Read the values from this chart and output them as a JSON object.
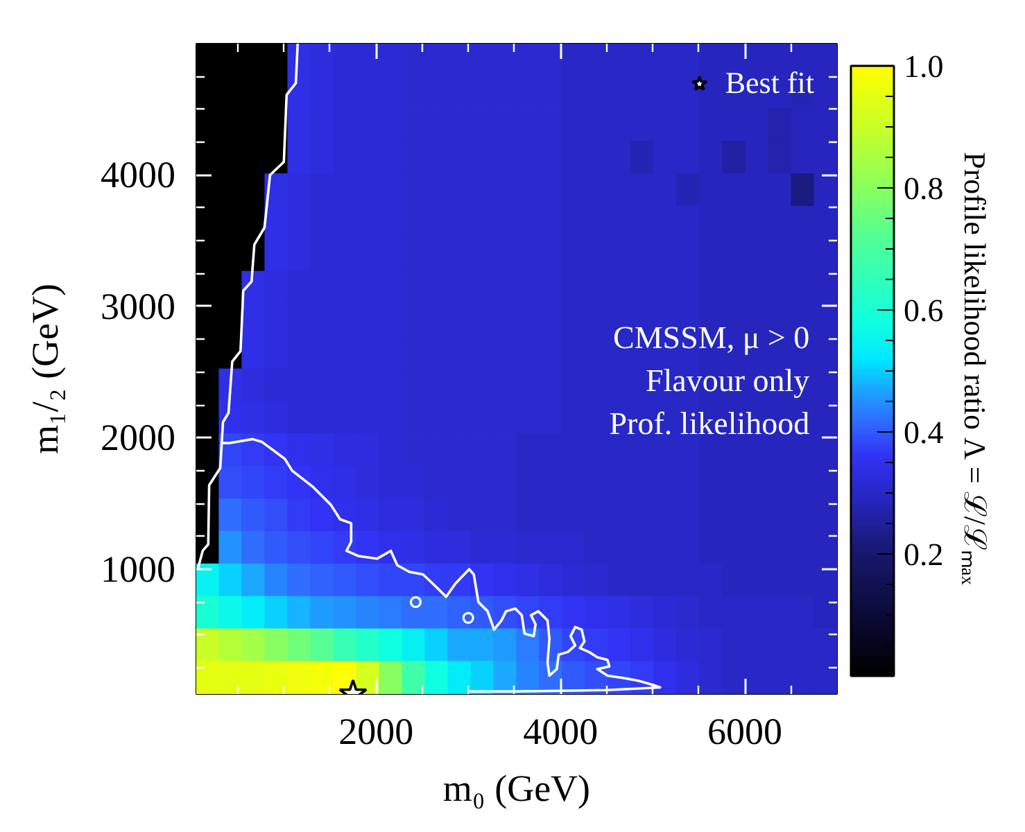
{
  "chart_data": {
    "type": "heatmap",
    "xlabel": "m₀ (GeV)",
    "ylabel": "m₁/₂ (GeV)",
    "clabel": "Profile likelihood ratio Λ = ℒ/ℒₘₐₓ",
    "annotations": [
      "CMSSM, μ > 0",
      "Flavour only",
      "Prof. likelihood"
    ],
    "cells": [
      [
        0,
        0,
        0,
        0,
        0.34,
        0.33,
        0.32,
        0.32,
        0.32,
        0.31,
        0.31,
        0.31,
        0.31,
        0.31,
        0.31,
        0.31,
        0.3,
        0.3,
        0.3,
        0.3,
        0.3,
        0.3,
        0.29,
        0.29,
        0.29,
        0.29,
        0.29,
        0.29
      ],
      [
        0,
        0,
        0,
        0,
        0.34,
        0.33,
        0.32,
        0.32,
        0.32,
        0.31,
        0.31,
        0.31,
        0.31,
        0.31,
        0.31,
        0.31,
        0.3,
        0.3,
        0.3,
        0.3,
        0.3,
        0.3,
        0.29,
        0.29,
        0.29,
        0.29,
        0.28,
        0.29
      ],
      [
        0,
        0,
        0,
        0,
        0.34,
        0.33,
        0.32,
        0.32,
        0.32,
        0.31,
        0.31,
        0.31,
        0.31,
        0.31,
        0.31,
        0.31,
        0.3,
        0.3,
        0.3,
        0.3,
        0.3,
        0.3,
        0.29,
        0.29,
        0.29,
        0.27,
        0.29,
        0.29
      ],
      [
        0,
        0,
        0,
        0,
        0.34,
        0.33,
        0.32,
        0.32,
        0.32,
        0.31,
        0.31,
        0.31,
        0.31,
        0.31,
        0.31,
        0.31,
        0.3,
        0.3,
        0.3,
        0.28,
        0.3,
        0.3,
        0.29,
        0.26,
        0.29,
        0.27,
        0.29,
        0.29
      ],
      [
        0,
        0,
        0,
        0.34,
        0.33,
        0.32,
        0.32,
        0.32,
        0.32,
        0.31,
        0.31,
        0.31,
        0.31,
        0.31,
        0.31,
        0.31,
        0.3,
        0.3,
        0.3,
        0.3,
        0.3,
        0.28,
        0.29,
        0.29,
        0.29,
        0.29,
        0.22,
        0.29
      ],
      [
        0,
        0,
        0,
        0.34,
        0.33,
        0.32,
        0.32,
        0.32,
        0.32,
        0.31,
        0.31,
        0.31,
        0.31,
        0.31,
        0.31,
        0.31,
        0.3,
        0.3,
        0.3,
        0.3,
        0.3,
        0.3,
        0.29,
        0.29,
        0.29,
        0.29,
        0.29,
        0.29
      ],
      [
        0,
        0,
        0,
        0.34,
        0.33,
        0.32,
        0.32,
        0.32,
        0.32,
        0.31,
        0.31,
        0.31,
        0.31,
        0.31,
        0.31,
        0.31,
        0.3,
        0.3,
        0.3,
        0.3,
        0.3,
        0.3,
        0.29,
        0.29,
        0.29,
        0.29,
        0.29,
        0.29
      ],
      [
        0,
        0,
        0.34,
        0.33,
        0.32,
        0.32,
        0.32,
        0.32,
        0.32,
        0.31,
        0.31,
        0.31,
        0.31,
        0.31,
        0.31,
        0.31,
        0.3,
        0.3,
        0.3,
        0.3,
        0.3,
        0.3,
        0.29,
        0.29,
        0.29,
        0.29,
        0.29,
        0.29
      ],
      [
        0,
        0,
        0.34,
        0.33,
        0.32,
        0.32,
        0.32,
        0.32,
        0.32,
        0.31,
        0.31,
        0.31,
        0.31,
        0.31,
        0.31,
        0.31,
        0.3,
        0.3,
        0.3,
        0.3,
        0.3,
        0.3,
        0.29,
        0.29,
        0.29,
        0.29,
        0.29,
        0.29
      ],
      [
        0,
        0,
        0.34,
        0.33,
        0.32,
        0.32,
        0.32,
        0.32,
        0.32,
        0.31,
        0.31,
        0.31,
        0.31,
        0.31,
        0.31,
        0.31,
        0.3,
        0.3,
        0.3,
        0.3,
        0.3,
        0.3,
        0.29,
        0.29,
        0.29,
        0.29,
        0.29,
        0.29
      ],
      [
        0,
        0.34,
        0.33,
        0.32,
        0.32,
        0.32,
        0.32,
        0.32,
        0.32,
        0.31,
        0.31,
        0.31,
        0.31,
        0.31,
        0.31,
        0.31,
        0.3,
        0.3,
        0.3,
        0.3,
        0.3,
        0.3,
        0.29,
        0.29,
        0.29,
        0.29,
        0.29,
        0.29
      ],
      [
        0,
        0.35,
        0.34,
        0.33,
        0.32,
        0.32,
        0.32,
        0.32,
        0.32,
        0.31,
        0.31,
        0.31,
        0.31,
        0.31,
        0.31,
        0.31,
        0.3,
        0.3,
        0.3,
        0.3,
        0.3,
        0.3,
        0.29,
        0.29,
        0.29,
        0.29,
        0.29,
        0.29
      ],
      [
        0,
        0.38,
        0.37,
        0.36,
        0.35,
        0.34,
        0.33,
        0.33,
        0.32,
        0.31,
        0.31,
        0.31,
        0.31,
        0.31,
        0.3,
        0.3,
        0.3,
        0.3,
        0.3,
        0.3,
        0.3,
        0.3,
        0.29,
        0.29,
        0.29,
        0.29,
        0.29,
        0.29
      ],
      [
        0,
        0.39,
        0.38,
        0.37,
        0.36,
        0.35,
        0.34,
        0.33,
        0.32,
        0.32,
        0.31,
        0.31,
        0.31,
        0.31,
        0.3,
        0.3,
        0.3,
        0.3,
        0.3,
        0.3,
        0.3,
        0.3,
        0.29,
        0.29,
        0.29,
        0.29,
        0.29,
        0.29
      ],
      [
        0,
        0.42,
        0.4,
        0.39,
        0.37,
        0.36,
        0.35,
        0.34,
        0.33,
        0.33,
        0.32,
        0.31,
        0.31,
        0.31,
        0.3,
        0.3,
        0.3,
        0.3,
        0.3,
        0.3,
        0.3,
        0.3,
        0.29,
        0.29,
        0.29,
        0.29,
        0.29,
        0.29
      ],
      [
        0,
        0.45,
        0.42,
        0.4,
        0.39,
        0.38,
        0.37,
        0.36,
        0.35,
        0.34,
        0.33,
        0.33,
        0.32,
        0.32,
        0.31,
        0.31,
        0.31,
        0.3,
        0.3,
        0.3,
        0.3,
        0.3,
        0.29,
        0.29,
        0.29,
        0.29,
        0.29,
        0.29
      ],
      [
        0.55,
        0.5,
        0.47,
        0.44,
        0.42,
        0.41,
        0.4,
        0.39,
        0.38,
        0.38,
        0.37,
        0.37,
        0.36,
        0.35,
        0.34,
        0.33,
        0.32,
        0.31,
        0.3,
        0.3,
        0.3,
        0.3,
        0.3,
        0.29,
        0.29,
        0.29,
        0.29,
        0.29
      ],
      [
        0.6,
        0.56,
        0.53,
        0.5,
        0.48,
        0.46,
        0.45,
        0.44,
        0.43,
        0.42,
        0.42,
        0.41,
        0.4,
        0.39,
        0.38,
        0.37,
        0.36,
        0.35,
        0.34,
        0.33,
        0.32,
        0.31,
        0.3,
        0.3,
        0.3,
        0.3,
        0.3,
        0.29
      ],
      [
        0.9,
        0.87,
        0.84,
        0.8,
        0.76,
        0.72,
        0.66,
        0.62,
        0.58,
        0.54,
        0.5,
        0.47,
        0.47,
        0.46,
        0.43,
        0.4,
        0.38,
        0.37,
        0.36,
        0.35,
        0.33,
        0.32,
        0.31,
        0.3,
        0.3,
        0.3,
        0.3,
        0.3
      ],
      [
        0.95,
        0.95,
        0.95,
        0.96,
        0.97,
        0.98,
        1.0,
        0.92,
        0.8,
        0.68,
        0.58,
        0.53,
        0.5,
        0.47,
        0.44,
        0.42,
        0.4,
        0.39,
        0.38,
        0.37,
        0.35,
        0.33,
        0.31,
        0.3,
        0.3,
        0.3,
        0.3,
        0.3
      ]
    ],
    "xlim": [
      50,
      7000
    ],
    "ylim": [
      50,
      5000
    ],
    "xticks": [
      {
        "value": 500,
        "label": null
      },
      {
        "value": 1000,
        "label": null
      },
      {
        "value": 1500,
        "label": null
      },
      2000,
      {
        "value": 2500,
        "label": null
      },
      {
        "value": 3000,
        "label": null
      },
      {
        "value": 3500,
        "label": null
      },
      4000,
      {
        "value": 4500,
        "label": null
      },
      {
        "value": 5000,
        "label": null
      },
      {
        "value": 5500,
        "label": null
      },
      6000,
      {
        "value": 6500,
        "label": null
      }
    ],
    "yticks": [
      {
        "value": 250,
        "label": null
      },
      {
        "value": 500,
        "label": null
      },
      {
        "value": 750,
        "label": null
      },
      1000,
      {
        "value": 1250,
        "label": null
      },
      {
        "value": 1500,
        "label": null
      },
      {
        "value": 1750,
        "label": null
      },
      2000,
      {
        "value": 2250,
        "label": null
      },
      {
        "value": 2500,
        "label": null
      },
      {
        "value": 2750,
        "label": null
      },
      3000,
      {
        "value": 3250,
        "label": null
      },
      {
        "value": 3500,
        "label": null
      },
      {
        "value": 3750,
        "label": null
      },
      4000,
      {
        "value": 4250,
        "label": null
      },
      {
        "value": 4500,
        "label": null
      },
      {
        "value": 4750,
        "label": null
      }
    ],
    "clim": [
      0,
      1
    ],
    "cticks": [
      {
        "value": 0.05,
        "label": null
      },
      {
        "value": 0.1,
        "label": null
      },
      {
        "value": 0.15,
        "label": null
      },
      0.2,
      {
        "value": 0.25,
        "label": null
      },
      {
        "value": 0.3,
        "label": null
      },
      {
        "value": 0.35,
        "label": null
      },
      0.4,
      {
        "value": 0.45,
        "label": null
      },
      {
        "value": 0.5,
        "label": null
      },
      {
        "value": 0.55,
        "label": null
      },
      0.6,
      {
        "value": 0.65,
        "label": null
      },
      {
        "value": 0.7,
        "label": null
      },
      {
        "value": 0.75,
        "label": null
      },
      0.8,
      {
        "value": 0.85,
        "label": null
      },
      {
        "value": 0.9,
        "label": null
      },
      {
        "value": 0.95,
        "label": null
      },
      {
        "value": 1.0,
        "label": "1.0"
      }
    ],
    "series": [
      {
        "type": "line",
        "color": "#ffffff",
        "x": [
          1150,
          1130,
          1030,
          1000,
          850,
          790,
          680,
          650,
          560,
          530,
          440,
          400,
          340,
          310,
          190,
          180,
          120,
          70,
          50
        ],
        "values": [
          5000,
          4700,
          4610,
          4100,
          4000,
          3600,
          3470,
          3190,
          3120,
          2660,
          2580,
          2190,
          2120,
          1770,
          1640,
          1190,
          1140,
          1010,
          1000
        ]
      },
      {
        "type": "line",
        "color": "#ffffff",
        "x": [
          320,
          410,
          660,
          760,
          1010,
          1090,
          1310,
          1510,
          1610,
          1730,
          1730,
          1680,
          1810,
          2010,
          2160,
          2230,
          2360,
          2510,
          2660,
          2760,
          2860,
          3010,
          3060,
          3110,
          3210,
          3280,
          3360,
          3410,
          3510,
          3580,
          3610,
          3710,
          3730,
          3680,
          3760,
          3860,
          3880,
          3860,
          3880,
          3960,
          3980,
          4080,
          4160,
          4110,
          4160,
          4230,
          4260,
          4210,
          4310,
          4400,
          4510,
          4530,
          4400,
          4510,
          4700,
          4850,
          5000,
          5080,
          4510,
          3510,
          3010
        ],
        "values": [
          1960,
          1960,
          1990,
          1970,
          1840,
          1750,
          1630,
          1490,
          1380,
          1350,
          1210,
          1140,
          1100,
          1080,
          1140,
          1030,
          980,
          960,
          860,
          790,
          890,
          1000,
          960,
          750,
          680,
          540,
          610,
          680,
          700,
          650,
          510,
          490,
          580,
          650,
          680,
          610,
          470,
          290,
          190,
          240,
          350,
          370,
          420,
          490,
          560,
          540,
          450,
          400,
          370,
          330,
          310,
          260,
          240,
          190,
          170,
          150,
          120,
          100,
          80,
          70,
          70
        ]
      },
      {
        "type": "scatter",
        "color": "#ffffff",
        "marker": "circle",
        "x": [
          2430,
          3000
        ],
        "values": [
          750,
          630
        ]
      },
      {
        "type": "scatter",
        "name": "Best fit",
        "color": "#ffffff",
        "marker": "star",
        "x": [
          1750
        ],
        "values": [
          50
        ]
      }
    ],
    "legend": "top right"
  }
}
